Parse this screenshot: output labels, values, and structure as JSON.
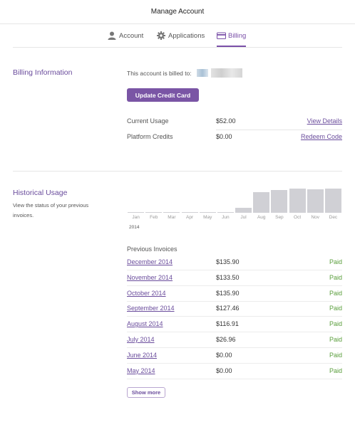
{
  "header": {
    "title": "Manage Account"
  },
  "tabs": [
    {
      "label": "Account",
      "icon": "person-icon"
    },
    {
      "label": "Applications",
      "icon": "gear-icon"
    },
    {
      "label": "Billing",
      "icon": "credit-card-icon",
      "active": true
    }
  ],
  "billing": {
    "title": "Billing Information",
    "billed_to_label": "This account is billed to:",
    "update_button": "Update Credit Card",
    "rows": [
      {
        "label": "Current Usage",
        "value": "$52.00",
        "link": "View Details"
      },
      {
        "label": "Platform Credits",
        "value": "$0.00",
        "link": "Redeem Code"
      }
    ]
  },
  "history": {
    "title": "Historical Usage",
    "description": "View the status of your previous invoices.",
    "year_label": "2014",
    "invoices_title": "Previous Invoices",
    "invoices": [
      {
        "month": "December 2014",
        "amount": "$135.90",
        "status": "Paid"
      },
      {
        "month": "November 2014",
        "amount": "$133.50",
        "status": "Paid"
      },
      {
        "month": "October 2014",
        "amount": "$135.90",
        "status": "Paid"
      },
      {
        "month": "September 2014",
        "amount": "$127.46",
        "status": "Paid"
      },
      {
        "month": "August 2014",
        "amount": "$116.91",
        "status": "Paid"
      },
      {
        "month": "July 2014",
        "amount": "$26.96",
        "status": "Paid"
      },
      {
        "month": "June 2014",
        "amount": "$0.00",
        "status": "Paid"
      },
      {
        "month": "May 2014",
        "amount": "$0.00",
        "status": "Paid"
      }
    ],
    "show_more": "Show more"
  },
  "chart_data": {
    "type": "bar",
    "categories": [
      "Jan",
      "Feb",
      "Mar",
      "Apr",
      "May",
      "Jun",
      "Jul",
      "Aug",
      "Sep",
      "Oct",
      "Nov",
      "Dec"
    ],
    "values": [
      0,
      0,
      0,
      0,
      0,
      0,
      26.96,
      116.91,
      127.46,
      135.9,
      133.5,
      135.9
    ],
    "ylim": [
      0,
      135.9
    ],
    "grid": false,
    "bar_color": "#d0d0d5"
  },
  "colors": {
    "accent": "#7a55a5",
    "link": "#6a4c9c",
    "paid": "#5a9e3c"
  }
}
